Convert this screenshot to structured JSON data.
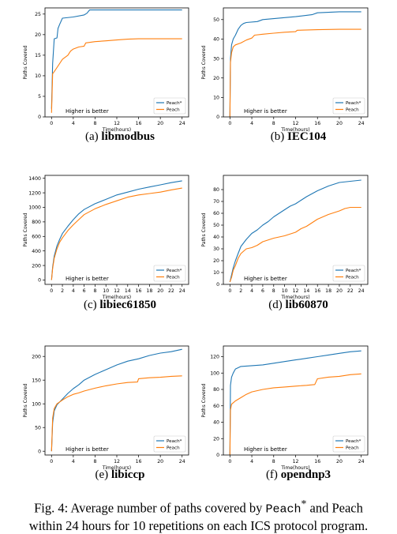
{
  "figure": {
    "caption": {
      "prefix": "Fig. 4: Average number of paths covered by",
      "peach_star": "Peach",
      "star": "*",
      "rest_line1": "and Peach",
      "line2": "within 24 hours for 10 repetitions on each ICS protocol program."
    },
    "colors": {
      "peach_star": "#1f77b4",
      "peach": "#ff7f0e"
    }
  },
  "chart_data": [
    {
      "type": "line",
      "id": "a",
      "sublabel": "(a)",
      "name": "libmodbus",
      "xlabel": "Time(hours)",
      "ylabel": "Paths Covered",
      "xlim": [
        -1.2,
        25.2
      ],
      "ylim": [
        0,
        26.5
      ],
      "xticks": [
        0,
        4,
        8,
        12,
        16,
        20,
        24
      ],
      "yticks": [
        0,
        5,
        10,
        15,
        20,
        25
      ],
      "legend": [
        "Peach*",
        "Peach"
      ],
      "legend_position": "lower-right",
      "annotation": "Higher is better",
      "series": [
        {
          "name": "Peach*",
          "x": [
            0,
            0.2,
            0.5,
            1,
            1.2,
            1.5,
            2,
            4,
            6,
            6.5,
            7,
            12,
            24
          ],
          "y": [
            2,
            13,
            19,
            19.2,
            21.5,
            22.5,
            24,
            24.3,
            24.8,
            25.2,
            26,
            26,
            26
          ]
        },
        {
          "name": "Peach",
          "x": [
            0,
            0.2,
            0.5,
            1,
            2,
            3,
            3.5,
            4,
            5,
            6,
            6.3,
            8,
            10,
            12,
            14,
            16,
            20,
            24
          ],
          "y": [
            1,
            10.5,
            11,
            12,
            14,
            15,
            16,
            16.5,
            17,
            17.2,
            18,
            18.3,
            18.5,
            18.7,
            18.9,
            19,
            19,
            19
          ]
        }
      ]
    },
    {
      "type": "line",
      "id": "b",
      "sublabel": "(b)",
      "name": "IEC104",
      "xlabel": "Time(hours)",
      "ylabel": "Paths Covered",
      "xlim": [
        -1.2,
        25.2
      ],
      "ylim": [
        0,
        56
      ],
      "xticks": [
        0,
        4,
        8,
        12,
        16,
        20,
        24
      ],
      "yticks": [
        0,
        10,
        20,
        30,
        40,
        50
      ],
      "legend": [
        "Peach*",
        "Peach"
      ],
      "legend_position": "lower-right",
      "annotation": "Higher is better",
      "series": [
        {
          "name": "Peach*",
          "x": [
            0,
            0.1,
            0.3,
            0.6,
            1,
            1.5,
            2,
            2.5,
            3,
            5,
            6,
            8,
            12,
            15,
            16,
            20,
            24
          ],
          "y": [
            0,
            30,
            37,
            40,
            42,
            45,
            47,
            48,
            48.5,
            49,
            50,
            50.5,
            51.5,
            52.5,
            53.5,
            54,
            54
          ]
        },
        {
          "name": "Peach",
          "x": [
            0,
            0.1,
            0.3,
            0.6,
            1,
            2,
            3,
            4,
            4.5,
            6,
            8,
            10,
            12,
            12.3,
            16,
            20,
            24
          ],
          "y": [
            0,
            28,
            33,
            36,
            37,
            38,
            39.5,
            40.5,
            42,
            42.5,
            43,
            43.5,
            43.8,
            44.5,
            44.8,
            45,
            45
          ]
        }
      ]
    },
    {
      "type": "line",
      "id": "c",
      "sublabel": "(c)",
      "name": "libiec61850",
      "xlabel": "Time(hours)",
      "ylabel": "Paths Covered",
      "xlim": [
        -1.2,
        25.2
      ],
      "ylim": [
        -60,
        1440
      ],
      "xticks": [
        0,
        2,
        4,
        6,
        8,
        10,
        12,
        14,
        16,
        18,
        20,
        22,
        24
      ],
      "yticks": [
        0,
        200,
        400,
        600,
        800,
        1000,
        1200,
        1400
      ],
      "legend": [
        "Peach*",
        "Peach"
      ],
      "legend_position": "lower-right",
      "annotation": "Higher is better",
      "series": [
        {
          "name": "Peach*",
          "x": [
            0,
            0.2,
            0.5,
            1,
            1.5,
            2,
            3,
            4,
            5,
            6,
            8,
            10,
            12,
            14,
            16,
            18,
            20,
            22,
            24
          ],
          "y": [
            0,
            180,
            330,
            470,
            560,
            640,
            740,
            830,
            910,
            970,
            1050,
            1110,
            1170,
            1210,
            1250,
            1280,
            1310,
            1340,
            1365
          ]
        },
        {
          "name": "Peach",
          "x": [
            0,
            0.2,
            0.5,
            1,
            1.5,
            2,
            3,
            4,
            5,
            6,
            8,
            10,
            12,
            14,
            16,
            18,
            20,
            22,
            24
          ],
          "y": [
            0,
            160,
            300,
            430,
            520,
            580,
            680,
            760,
            830,
            900,
            980,
            1040,
            1090,
            1140,
            1170,
            1190,
            1210,
            1240,
            1265
          ]
        }
      ]
    },
    {
      "type": "line",
      "id": "d",
      "sublabel": "(d)",
      "name": "lib60870",
      "xlabel": "Time(hours)",
      "ylabel": "Paths Covered",
      "xlim": [
        -1.2,
        25.2
      ],
      "ylim": [
        0,
        92
      ],
      "xticks": [
        0,
        2,
        4,
        6,
        8,
        10,
        12,
        14,
        16,
        18,
        20,
        22,
        24
      ],
      "yticks": [
        0,
        10,
        20,
        30,
        40,
        50,
        60,
        70,
        80
      ],
      "legend": [
        "Peach*",
        "Peach"
      ],
      "legend_position": "lower-right",
      "annotation": "Higher is better",
      "series": [
        {
          "name": "Peach*",
          "x": [
            0,
            0.3,
            0.6,
            1,
            1.5,
            2,
            3,
            4,
            5,
            6,
            7,
            8,
            9,
            10,
            11,
            12,
            13,
            14,
            16,
            18,
            20,
            22,
            24
          ],
          "y": [
            2,
            8,
            14,
            20,
            26,
            32,
            38,
            43,
            46,
            50,
            53,
            57,
            60,
            63,
            66,
            68,
            71,
            74,
            79,
            83,
            86,
            87,
            88
          ]
        },
        {
          "name": "Peach",
          "x": [
            0,
            0.3,
            0.6,
            1,
            1.5,
            2,
            2.5,
            3,
            4,
            5,
            6,
            8,
            10,
            12,
            13,
            14,
            15,
            16,
            18,
            20,
            21,
            22,
            24
          ],
          "y": [
            2,
            6,
            12,
            16,
            22,
            26,
            28,
            30,
            31,
            33,
            36,
            39,
            41,
            44,
            47,
            49,
            52,
            55,
            59,
            62,
            64,
            65,
            65
          ]
        }
      ]
    },
    {
      "type": "line",
      "id": "e",
      "sublabel": "(e)",
      "name": "libiccp",
      "xlabel": "Time(hours)",
      "ylabel": "Paths Covered",
      "xlim": [
        -1.2,
        25.2
      ],
      "ylim": [
        -8,
        222
      ],
      "xticks": [
        0,
        4,
        8,
        12,
        16,
        20,
        24
      ],
      "yticks": [
        0,
        50,
        100,
        150,
        200
      ],
      "legend": [
        "Peach*",
        "Peach"
      ],
      "legend_position": "lower-right",
      "annotation": "Higher is better",
      "series": [
        {
          "name": "Peach*",
          "x": [
            0,
            0.2,
            0.5,
            1,
            2,
            3,
            4,
            5,
            6,
            8,
            10,
            12,
            14,
            16,
            18,
            20,
            22,
            24
          ],
          "y": [
            0,
            60,
            85,
            98,
            110,
            122,
            132,
            140,
            150,
            162,
            172,
            182,
            190,
            195,
            202,
            207,
            210,
            215
          ]
        },
        {
          "name": "Peach",
          "x": [
            0,
            0.2,
            0.5,
            1,
            2,
            3,
            4,
            5,
            6,
            8,
            10,
            12,
            14,
            15.8,
            16,
            18,
            20,
            22,
            24
          ],
          "y": [
            0,
            70,
            90,
            100,
            108,
            115,
            120,
            123,
            127,
            133,
            138,
            142,
            145,
            146,
            153,
            155,
            156,
            158,
            159
          ]
        }
      ]
    },
    {
      "type": "line",
      "id": "f",
      "sublabel": "(f)",
      "name": "opendnp3",
      "xlabel": "Time(hours)",
      "ylabel": "Paths Covered",
      "xlim": [
        -1.2,
        25.2
      ],
      "ylim": [
        0,
        133
      ],
      "xticks": [
        0,
        4,
        8,
        12,
        16,
        20,
        24
      ],
      "yticks": [
        0,
        20,
        40,
        60,
        80,
        100,
        120
      ],
      "legend": [
        "Peach*",
        "Peach"
      ],
      "legend_position": "lower-right",
      "annotation": "Higher is better",
      "series": [
        {
          "name": "Peach*",
          "x": [
            0,
            0.1,
            0.3,
            0.6,
            1,
            2,
            4,
            6,
            8,
            10,
            12,
            14,
            16,
            18,
            20,
            22,
            24
          ],
          "y": [
            0,
            85,
            95,
            100,
            105,
            108,
            109,
            110,
            112,
            114,
            116,
            118,
            120,
            122,
            124,
            126,
            127
          ]
        },
        {
          "name": "Peach",
          "x": [
            0,
            0.1,
            0.3,
            1,
            2,
            3,
            4,
            6,
            8,
            10,
            12,
            14,
            15.5,
            16,
            18,
            20,
            22,
            24
          ],
          "y": [
            0,
            55,
            62,
            66,
            70,
            74,
            77,
            80,
            82,
            83,
            84,
            85,
            86,
            93,
            95,
            96,
            98,
            99
          ]
        }
      ]
    }
  ]
}
